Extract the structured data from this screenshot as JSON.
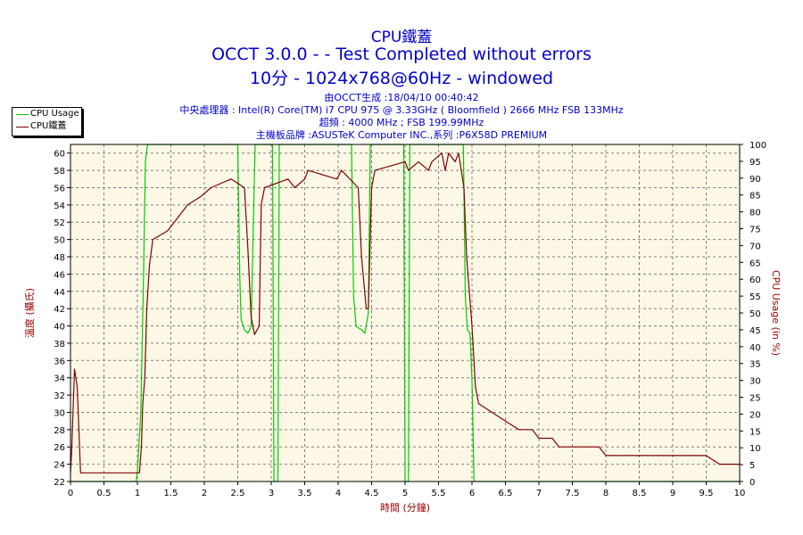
{
  "title": "CPU鐵蓋",
  "subtitle_1": "OCCT 3.0.0 -  - Test Completed without errors",
  "subtitle_2": "10分 - 1024x768@60Hz - windowed",
  "info_lines": [
    "由OCCT生成 :18/04/10 00:40:42",
    "中央處理器 : Intel(R) Core(TM) i7 CPU 975 @ 3.33GHz ( Bloomfield ) 2666 MHz FSB 133MHz",
    "超頻 : 4000 MHz ; FSB 199.99MHz",
    "主機板品牌 :ASUSTeK Computer INC.,系列 :P6X58D PREMIUM"
  ],
  "colors": {
    "title": "#0000cc",
    "axis_label": "#990000",
    "plot_bg": "#fdf8e6",
    "grid": "#7f7f7f",
    "cpu_usage": "#00cc00",
    "cpu_temp": "#800000"
  },
  "chart_data": {
    "type": "line",
    "xlabel": "時間 (分鐘)",
    "ylabel_left": "溫度 (攝氏)",
    "ylabel_right": "CPU Usage (in %)",
    "xlim": [
      0,
      10
    ],
    "ylim_left": [
      22,
      61
    ],
    "ylim_right": [
      0,
      100
    ],
    "x_ticks": [
      "0",
      "0.5",
      "1",
      "1.5",
      "2",
      "2.5",
      "3",
      "3.5",
      "4",
      "4.5",
      "5",
      "5.5",
      "6",
      "6.5",
      "7",
      "7.5",
      "8",
      "8.5",
      "9",
      "9.5",
      "10"
    ],
    "y_left_ticks": [
      "22",
      "24",
      "26",
      "28",
      "30",
      "32",
      "34",
      "36",
      "38",
      "40",
      "42",
      "44",
      "46",
      "48",
      "50",
      "52",
      "54",
      "56",
      "58",
      "60"
    ],
    "y_right_ticks": [
      "0",
      "5",
      "10",
      "15",
      "20",
      "25",
      "30",
      "35",
      "40",
      "45",
      "50",
      "55",
      "60",
      "65",
      "70",
      "75",
      "80",
      "85",
      "90",
      "95",
      "100"
    ],
    "grid": true,
    "legend_position": "top-left",
    "series": [
      {
        "name": "CPU Usage",
        "axis": "right",
        "points": [
          [
            0,
            0
          ],
          [
            0.98,
            0
          ],
          [
            1.0,
            3
          ],
          [
            1.05,
            20
          ],
          [
            1.09,
            60
          ],
          [
            1.12,
            95
          ],
          [
            1.15,
            100
          ],
          [
            2.5,
            100
          ],
          [
            2.53,
            60
          ],
          [
            2.55,
            48
          ],
          [
            2.6,
            45
          ],
          [
            2.65,
            44
          ],
          [
            2.7,
            46
          ],
          [
            2.73,
            75
          ],
          [
            2.76,
            100
          ],
          [
            3.02,
            100
          ],
          [
            3.04,
            0
          ],
          [
            3.1,
            0
          ],
          [
            3.12,
            100
          ],
          [
            4.2,
            100
          ],
          [
            4.23,
            55
          ],
          [
            4.27,
            46
          ],
          [
            4.35,
            45
          ],
          [
            4.4,
            44
          ],
          [
            4.45,
            50
          ],
          [
            4.48,
            100
          ],
          [
            4.98,
            100
          ],
          [
            5.0,
            0
          ],
          [
            5.05,
            0
          ],
          [
            5.07,
            100
          ],
          [
            5.87,
            100
          ],
          [
            5.9,
            55
          ],
          [
            5.93,
            45
          ],
          [
            5.97,
            44
          ],
          [
            6.0,
            30
          ],
          [
            6.03,
            0
          ],
          [
            10,
            0
          ]
        ]
      },
      {
        "name": "CPU鐵蓋",
        "axis": "left",
        "points": [
          [
            0,
            23
          ],
          [
            0.02,
            26
          ],
          [
            0.06,
            35
          ],
          [
            0.1,
            33
          ],
          [
            0.15,
            23
          ],
          [
            1.03,
            23
          ],
          [
            1.06,
            26
          ],
          [
            1.08,
            31
          ],
          [
            1.11,
            34
          ],
          [
            1.14,
            42
          ],
          [
            1.18,
            47
          ],
          [
            1.23,
            50
          ],
          [
            1.45,
            51
          ],
          [
            1.55,
            52
          ],
          [
            1.65,
            53
          ],
          [
            1.75,
            54
          ],
          [
            1.95,
            55
          ],
          [
            2.1,
            56
          ],
          [
            2.4,
            57
          ],
          [
            2.6,
            56
          ],
          [
            2.65,
            49
          ],
          [
            2.7,
            41
          ],
          [
            2.75,
            39
          ],
          [
            2.82,
            40
          ],
          [
            2.85,
            54
          ],
          [
            2.9,
            56
          ],
          [
            3.25,
            57
          ],
          [
            3.35,
            56
          ],
          [
            3.5,
            57
          ],
          [
            3.55,
            58
          ],
          [
            3.98,
            57
          ],
          [
            4.05,
            58
          ],
          [
            4.3,
            56
          ],
          [
            4.35,
            48
          ],
          [
            4.42,
            42
          ],
          [
            4.45,
            42
          ],
          [
            4.5,
            56
          ],
          [
            4.55,
            58
          ],
          [
            5.0,
            59
          ],
          [
            5.05,
            58
          ],
          [
            5.2,
            59
          ],
          [
            5.35,
            58
          ],
          [
            5.4,
            59
          ],
          [
            5.55,
            60
          ],
          [
            5.6,
            58
          ],
          [
            5.65,
            60
          ],
          [
            5.75,
            59
          ],
          [
            5.8,
            60
          ],
          [
            5.88,
            56
          ],
          [
            5.92,
            48
          ],
          [
            6.0,
            40
          ],
          [
            6.05,
            33
          ],
          [
            6.1,
            31
          ],
          [
            6.3,
            30
          ],
          [
            6.5,
            29
          ],
          [
            6.7,
            28
          ],
          [
            6.9,
            28
          ],
          [
            7.0,
            27
          ],
          [
            7.2,
            27
          ],
          [
            7.3,
            26
          ],
          [
            7.9,
            26
          ],
          [
            8.0,
            25
          ],
          [
            9.5,
            25
          ],
          [
            9.7,
            24
          ],
          [
            10,
            24
          ]
        ]
      }
    ]
  }
}
